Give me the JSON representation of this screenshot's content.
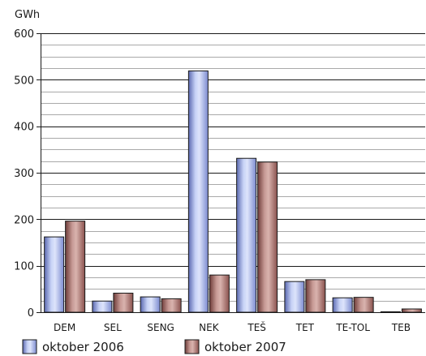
{
  "chart_data": {
    "type": "bar",
    "ylabel": "GWh",
    "ylim": [
      0,
      600
    ],
    "yticks": [
      0,
      100,
      200,
      300,
      400,
      500,
      600
    ],
    "grid": true,
    "categories": [
      "DEM",
      "SEL",
      "SENG",
      "NEK",
      "TEŠ",
      "TET",
      "TE-TOL",
      "TEB"
    ],
    "series": [
      {
        "name": "oktober 2006",
        "values": [
          162,
          24,
          33,
          519,
          331,
          66,
          31,
          1
        ],
        "color": "#a4b4ea"
      },
      {
        "name": "oktober 2007",
        "values": [
          196,
          41,
          29,
          80,
          323,
          70,
          32,
          7
        ],
        "color": "#b07c78"
      }
    ],
    "legend_position": "bottom-left"
  }
}
